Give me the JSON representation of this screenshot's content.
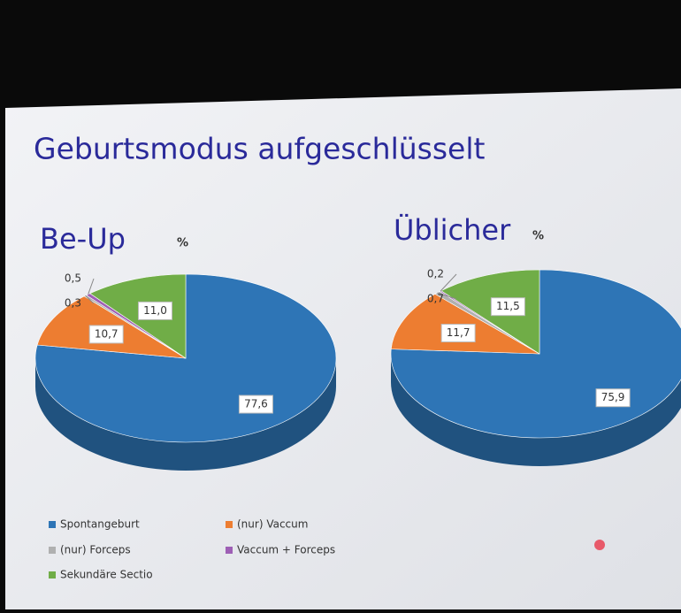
{
  "title": "Geburtsmodus aufgeschlüsselt",
  "legend": {
    "labels": [
      "Spontangeburt",
      "(nur) Vaccum",
      "(nur) Forceps",
      "Vaccum + Forceps",
      "Sekundäre Sectio"
    ],
    "colors": [
      "#2e75b6",
      "#ed7d31",
      "#b0b0b0",
      "#9e5fb5",
      "#70ad47"
    ]
  },
  "chart_data": [
    {
      "type": "pie",
      "title": "Be-Up",
      "subtitle": "%",
      "values": [
        77.6,
        10.7,
        0.3,
        0.5,
        11.0
      ],
      "value_labels": [
        "77,6",
        "10,7",
        "0,3",
        "0,5",
        "11,0"
      ]
    },
    {
      "type": "pie",
      "title": "Üblicher",
      "subtitle": "%",
      "values": [
        75.9,
        11.7,
        0.7,
        0.2,
        11.5
      ],
      "value_labels": [
        "75,9",
        "11,7",
        "0,7",
        "0,2",
        "11,5"
      ]
    }
  ]
}
